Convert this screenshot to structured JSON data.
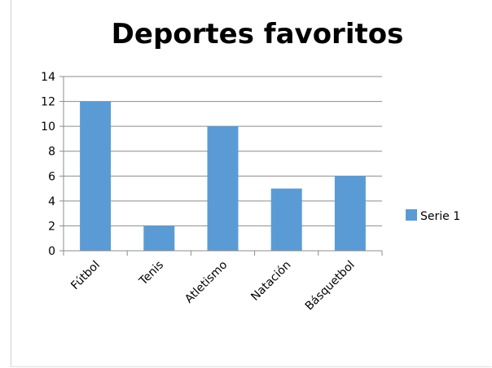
{
  "chart_data": {
    "type": "bar",
    "title": "Deportes favoritos",
    "categories": [
      "Fútbol",
      "Tenis",
      "Atletismo",
      "Natación",
      "Básquetbol"
    ],
    "series": [
      {
        "name": "Serie 1",
        "values": [
          12,
          2,
          10,
          5,
          6
        ]
      }
    ],
    "ylim": [
      0,
      14
    ],
    "yticks": [
      0,
      2,
      4,
      6,
      8,
      10,
      12,
      14
    ],
    "grid": true,
    "legend": "right",
    "colors": {
      "bar": "#5b9bd5",
      "grid": "#8c8c8c",
      "axis": "#8c8c8c"
    }
  }
}
